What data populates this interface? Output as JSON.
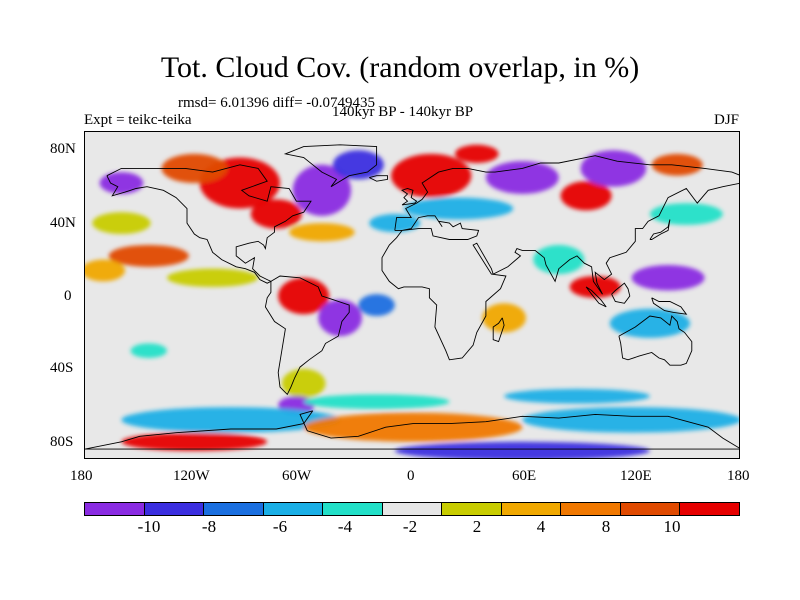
{
  "title": "Tot. Cloud Cov. (random overlap, in %)",
  "stats_line": "rmsd= 6.01396 diff= -0.0749435",
  "experiment": "Expt = teikc-teika",
  "period": "140kyr BP - 140kyr BP",
  "season": "DJF",
  "map": {
    "projection": "cylindrical equidistant",
    "lon_range": [
      -180,
      180
    ],
    "lat_range": [
      -90,
      90
    ],
    "lat_ticks": [
      "80N",
      "40N",
      "0",
      "40S",
      "80S"
    ],
    "lon_ticks": [
      "180",
      "120W",
      "60W",
      "0",
      "60E",
      "120E",
      "180"
    ],
    "land_outline": "coastlines"
  },
  "colorbar": {
    "colors": [
      "#8a2be2",
      "#3b2ee0",
      "#1a6fe0",
      "#1aafe6",
      "#22e0c8",
      "#e6e6e6",
      "#c8cc00",
      "#f0a800",
      "#f07800",
      "#e04a00",
      "#e60000"
    ],
    "labels": [
      "-10",
      "-8",
      "-6",
      "-4",
      "-2",
      "2",
      "4",
      "8",
      "10"
    ]
  },
  "fields": [
    {
      "c": 10,
      "lon": -95,
      "lat": 62,
      "rx": 22,
      "ry": 14
    },
    {
      "c": 10,
      "lon": -75,
      "lat": 45,
      "rx": 14,
      "ry": 8
    },
    {
      "c": 9,
      "lon": -120,
      "lat": 70,
      "rx": 18,
      "ry": 8
    },
    {
      "c": 0,
      "lon": -50,
      "lat": 58,
      "rx": 16,
      "ry": 14
    },
    {
      "c": 1,
      "lon": -30,
      "lat": 72,
      "rx": 14,
      "ry": 8
    },
    {
      "c": 0,
      "lon": -160,
      "lat": 62,
      "rx": 12,
      "ry": 6
    },
    {
      "c": 0,
      "lon": 60,
      "lat": 65,
      "rx": 20,
      "ry": 9
    },
    {
      "c": 10,
      "lon": 10,
      "lat": 66,
      "rx": 22,
      "ry": 12
    },
    {
      "c": 10,
      "lon": 35,
      "lat": 78,
      "rx": 12,
      "ry": 5
    },
    {
      "c": 10,
      "lon": 95,
      "lat": 55,
      "rx": 14,
      "ry": 8
    },
    {
      "c": 0,
      "lon": 110,
      "lat": 70,
      "rx": 18,
      "ry": 10
    },
    {
      "c": 9,
      "lon": 145,
      "lat": 72,
      "rx": 14,
      "ry": 6
    },
    {
      "c": 3,
      "lon": 25,
      "lat": 48,
      "rx": 30,
      "ry": 6
    },
    {
      "c": 7,
      "lon": -50,
      "lat": 35,
      "rx": 18,
      "ry": 5
    },
    {
      "c": 9,
      "lon": -145,
      "lat": 22,
      "rx": 22,
      "ry": 6
    },
    {
      "c": 7,
      "lon": -170,
      "lat": 14,
      "rx": 12,
      "ry": 6
    },
    {
      "c": 6,
      "lon": -110,
      "lat": 10,
      "rx": 25,
      "ry": 5
    },
    {
      "c": 10,
      "lon": -60,
      "lat": 0,
      "rx": 14,
      "ry": 10
    },
    {
      "c": 0,
      "lon": -40,
      "lat": -12,
      "rx": 12,
      "ry": 10
    },
    {
      "c": 2,
      "lon": -20,
      "lat": -5,
      "rx": 10,
      "ry": 6
    },
    {
      "c": 10,
      "lon": 100,
      "lat": 5,
      "rx": 14,
      "ry": 6
    },
    {
      "c": 0,
      "lon": 140,
      "lat": 10,
      "rx": 20,
      "ry": 7
    },
    {
      "c": 3,
      "lon": 130,
      "lat": -15,
      "rx": 22,
      "ry": 8
    },
    {
      "c": 7,
      "lon": 50,
      "lat": -12,
      "rx": 12,
      "ry": 8
    },
    {
      "c": 4,
      "lon": 80,
      "lat": 20,
      "rx": 14,
      "ry": 8
    },
    {
      "c": 4,
      "lon": 150,
      "lat": 45,
      "rx": 20,
      "ry": 6
    },
    {
      "c": 6,
      "lon": -160,
      "lat": 40,
      "rx": 16,
      "ry": 6
    },
    {
      "c": 3,
      "lon": -10,
      "lat": 40,
      "rx": 14,
      "ry": 5
    },
    {
      "c": 4,
      "lon": -145,
      "lat": -30,
      "rx": 10,
      "ry": 4
    },
    {
      "c": 6,
      "lon": -60,
      "lat": -48,
      "rx": 12,
      "ry": 8
    },
    {
      "c": 0,
      "lon": -64,
      "lat": -60,
      "rx": 10,
      "ry": 5
    },
    {
      "c": 3,
      "lon": -100,
      "lat": -68,
      "rx": 60,
      "ry": 7
    },
    {
      "c": 8,
      "lon": 0,
      "lat": -72,
      "rx": 60,
      "ry": 8
    },
    {
      "c": 3,
      "lon": 120,
      "lat": -68,
      "rx": 60,
      "ry": 7
    },
    {
      "c": 10,
      "lon": -120,
      "lat": -80,
      "rx": 40,
      "ry": 5
    },
    {
      "c": 1,
      "lon": 60,
      "lat": -85,
      "rx": 70,
      "ry": 5
    },
    {
      "c": 4,
      "lon": -20,
      "lat": -58,
      "rx": 40,
      "ry": 4
    },
    {
      "c": 3,
      "lon": 90,
      "lat": -55,
      "rx": 40,
      "ry": 4
    }
  ],
  "coastlines": [
    [
      [
        -168,
        66
      ],
      [
        -160,
        70
      ],
      [
        -140,
        70
      ],
      [
        -125,
        70
      ],
      [
        -110,
        68
      ],
      [
        -95,
        72
      ],
      [
        -85,
        70
      ],
      [
        -80,
        63
      ],
      [
        -94,
        58
      ],
      [
        -90,
        55
      ],
      [
        -80,
        52
      ],
      [
        -78,
        60
      ],
      [
        -68,
        59
      ],
      [
        -64,
        52
      ],
      [
        -56,
        52
      ],
      [
        -60,
        46
      ],
      [
        -66,
        44
      ],
      [
        -70,
        41
      ],
      [
        -76,
        38
      ],
      [
        -76,
        35
      ],
      [
        -80,
        32
      ],
      [
        -81,
        26
      ],
      [
        -82,
        28
      ],
      [
        -85,
        30
      ],
      [
        -90,
        29
      ],
      [
        -97,
        27
      ],
      [
        -97,
        22
      ],
      [
        -92,
        18
      ],
      [
        -87,
        21
      ],
      [
        -88,
        15
      ],
      [
        -84,
        11
      ],
      [
        -80,
        9
      ],
      [
        -78,
        8
      ],
      [
        -80,
        7
      ],
      [
        -84,
        9
      ],
      [
        -87,
        13
      ],
      [
        -92,
        15
      ],
      [
        -97,
        16
      ],
      [
        -105,
        20
      ],
      [
        -110,
        24
      ],
      [
        -113,
        31
      ],
      [
        -117,
        32
      ],
      [
        -120,
        34
      ],
      [
        -124,
        40
      ],
      [
        -124,
        48
      ],
      [
        -130,
        54
      ],
      [
        -137,
        58
      ],
      [
        -146,
        60
      ],
      [
        -152,
        59
      ],
      [
        -158,
        57
      ],
      [
        -165,
        55
      ],
      [
        -162,
        60
      ],
      [
        -166,
        62
      ],
      [
        -168,
        66
      ]
    ],
    [
      [
        -78,
        8
      ],
      [
        -73,
        11
      ],
      [
        -62,
        10
      ],
      [
        -52,
        5
      ],
      [
        -50,
        0
      ],
      [
        -44,
        -2
      ],
      [
        -35,
        -5
      ],
      [
        -35,
        -9
      ],
      [
        -39,
        -14
      ],
      [
        -41,
        -22
      ],
      [
        -48,
        -26
      ],
      [
        -50,
        -30
      ],
      [
        -57,
        -35
      ],
      [
        -62,
        -39
      ],
      [
        -65,
        -45
      ],
      [
        -67,
        -50
      ],
      [
        -69,
        -54
      ],
      [
        -73,
        -50
      ],
      [
        -74,
        -42
      ],
      [
        -72,
        -30
      ],
      [
        -70,
        -18
      ],
      [
        -76,
        -14
      ],
      [
        -81,
        -6
      ],
      [
        -80,
        -1
      ],
      [
        -78,
        2
      ],
      [
        -78,
        8
      ]
    ],
    [
      [
        -10,
        36
      ],
      [
        -9,
        43
      ],
      [
        -1,
        43
      ],
      [
        -4,
        48
      ],
      [
        2,
        51
      ],
      [
        5,
        53
      ],
      [
        8,
        57
      ],
      [
        5,
        62
      ],
      [
        14,
        68
      ],
      [
        22,
        70
      ],
      [
        30,
        70
      ],
      [
        40,
        68
      ],
      [
        45,
        68
      ],
      [
        60,
        70
      ],
      [
        70,
        73
      ],
      [
        80,
        73
      ],
      [
        100,
        77
      ],
      [
        112,
        74
      ],
      [
        130,
        72
      ],
      [
        142,
        72
      ],
      [
        160,
        70
      ],
      [
        175,
        68
      ],
      [
        180,
        66
      ],
      [
        180,
        62
      ],
      [
        170,
        60
      ],
      [
        162,
        58
      ],
      [
        156,
        51
      ],
      [
        150,
        59
      ],
      [
        140,
        54
      ],
      [
        135,
        44
      ],
      [
        129,
        41
      ],
      [
        126,
        37
      ],
      [
        122,
        37
      ],
      [
        122,
        30
      ],
      [
        117,
        24
      ],
      [
        108,
        21
      ],
      [
        106,
        18
      ],
      [
        109,
        12
      ],
      [
        105,
        9
      ],
      [
        100,
        13
      ],
      [
        101,
        7
      ],
      [
        104,
        1
      ],
      [
        99,
        8
      ],
      [
        98,
        16
      ],
      [
        94,
        18
      ],
      [
        90,
        22
      ],
      [
        86,
        20
      ],
      [
        80,
        15
      ],
      [
        78,
        8
      ],
      [
        73,
        17
      ],
      [
        72,
        21
      ],
      [
        67,
        25
      ],
      [
        60,
        25
      ],
      [
        57,
        26
      ],
      [
        56,
        24
      ],
      [
        59,
        22
      ],
      [
        52,
        16
      ],
      [
        44,
        12
      ],
      [
        43,
        15
      ],
      [
        35,
        29
      ],
      [
        33,
        28
      ],
      [
        43,
        12
      ],
      [
        51,
        11
      ],
      [
        48,
        4
      ],
      [
        40,
        -3
      ],
      [
        40,
        -11
      ],
      [
        35,
        -20
      ],
      [
        33,
        -27
      ],
      [
        27,
        -34
      ],
      [
        20,
        -35
      ],
      [
        18,
        -30
      ],
      [
        12,
        -17
      ],
      [
        13,
        -5
      ],
      [
        9,
        -1
      ],
      [
        9,
        4
      ],
      [
        5,
        5
      ],
      [
        -5,
        5
      ],
      [
        -8,
        4
      ],
      [
        -13,
        8
      ],
      [
        -17,
        14
      ],
      [
        -17,
        21
      ],
      [
        -13,
        28
      ],
      [
        -9,
        32
      ],
      [
        -6,
        36
      ],
      [
        3,
        37
      ],
      [
        10,
        37
      ],
      [
        11,
        33
      ],
      [
        20,
        31
      ],
      [
        30,
        31
      ],
      [
        35,
        33
      ],
      [
        36,
        36
      ],
      [
        27,
        37
      ],
      [
        26,
        40
      ],
      [
        22,
        38
      ],
      [
        20,
        40
      ],
      [
        14,
        41
      ],
      [
        16,
        38
      ],
      [
        12,
        44
      ],
      [
        8,
        44
      ],
      [
        3,
        43
      ],
      [
        -1,
        37
      ],
      [
        -6,
        36
      ],
      [
        -10,
        36
      ]
    ],
    [
      [
        113,
        -22
      ],
      [
        114,
        -26
      ],
      [
        115,
        -34
      ],
      [
        118,
        -35
      ],
      [
        124,
        -33
      ],
      [
        131,
        -31
      ],
      [
        135,
        -34
      ],
      [
        138,
        -35
      ],
      [
        141,
        -38
      ],
      [
        147,
        -38
      ],
      [
        150,
        -37
      ],
      [
        153,
        -30
      ],
      [
        153,
        -25
      ],
      [
        149,
        -20
      ],
      [
        146,
        -18
      ],
      [
        145,
        -14
      ],
      [
        142,
        -11
      ],
      [
        141,
        -16
      ],
      [
        136,
        -12
      ],
      [
        130,
        -11
      ],
      [
        126,
        -14
      ],
      [
        122,
        -17
      ],
      [
        113,
        -22
      ]
    ],
    [
      [
        -55,
        -63
      ],
      [
        -60,
        -70
      ],
      [
        -75,
        -73
      ],
      [
        -100,
        -73
      ],
      [
        -130,
        -75
      ],
      [
        -150,
        -77
      ],
      [
        -160,
        -80
      ],
      [
        -180,
        -84
      ],
      [
        180,
        -84
      ],
      [
        170,
        -78
      ],
      [
        162,
        -72
      ],
      [
        140,
        -66
      ],
      [
        120,
        -66
      ],
      [
        100,
        -65
      ],
      [
        80,
        -67
      ],
      [
        60,
        -66
      ],
      [
        40,
        -69
      ],
      [
        20,
        -70
      ],
      [
        0,
        -70
      ],
      [
        -15,
        -72
      ],
      [
        -30,
        -77
      ],
      [
        -45,
        -78
      ],
      [
        -58,
        -74
      ],
      [
        -62,
        -65
      ],
      [
        -55,
        -63
      ]
    ],
    [
      [
        -45,
        60
      ],
      [
        -42,
        64
      ],
      [
        -50,
        68
      ],
      [
        -55,
        72
      ],
      [
        -60,
        76
      ],
      [
        -70,
        78
      ],
      [
        -60,
        82
      ],
      [
        -40,
        83
      ],
      [
        -20,
        82
      ],
      [
        -20,
        72
      ],
      [
        -25,
        68
      ],
      [
        -35,
        66
      ],
      [
        -45,
        60
      ]
    ],
    [
      [
        -6,
        50
      ],
      [
        -3,
        52
      ],
      [
        -5,
        54
      ],
      [
        -3,
        56
      ],
      [
        -6,
        58
      ],
      [
        -3,
        59
      ],
      [
        0,
        58
      ],
      [
        -1,
        54
      ],
      [
        2,
        52
      ],
      [
        1,
        51
      ],
      [
        -6,
        50
      ]
    ],
    [
      [
        130,
        31
      ],
      [
        132,
        34
      ],
      [
        136,
        35
      ],
      [
        140,
        38
      ],
      [
        141,
        42
      ],
      [
        140,
        36
      ],
      [
        136,
        34
      ],
      [
        131,
        31
      ],
      [
        130,
        31
      ]
    ],
    [
      [
        95,
        5
      ],
      [
        98,
        3
      ],
      [
        103,
        -2
      ],
      [
        106,
        -6
      ],
      [
        102,
        -4
      ],
      [
        98,
        1
      ],
      [
        95,
        5
      ]
    ],
    [
      [
        109,
        1
      ],
      [
        111,
        3
      ],
      [
        116,
        7
      ],
      [
        118,
        4
      ],
      [
        119,
        0
      ],
      [
        116,
        -4
      ],
      [
        111,
        -3
      ],
      [
        109,
        1
      ]
    ],
    [
      [
        131,
        -1
      ],
      [
        135,
        -3
      ],
      [
        141,
        -3
      ],
      [
        147,
        -6
      ],
      [
        150,
        -10
      ],
      [
        143,
        -9
      ],
      [
        138,
        -8
      ],
      [
        132,
        -4
      ],
      [
        131,
        -1
      ]
    ],
    [
      [
        49,
        -12
      ],
      [
        50,
        -16
      ],
      [
        47,
        -25
      ],
      [
        44,
        -24
      ],
      [
        44,
        -17
      ],
      [
        47,
        -15
      ],
      [
        49,
        -12
      ]
    ],
    [
      [
        -24,
        65
      ],
      [
        -20,
        66
      ],
      [
        -14,
        66
      ],
      [
        -14,
        64
      ],
      [
        -20,
        63
      ],
      [
        -24,
        65
      ]
    ]
  ]
}
